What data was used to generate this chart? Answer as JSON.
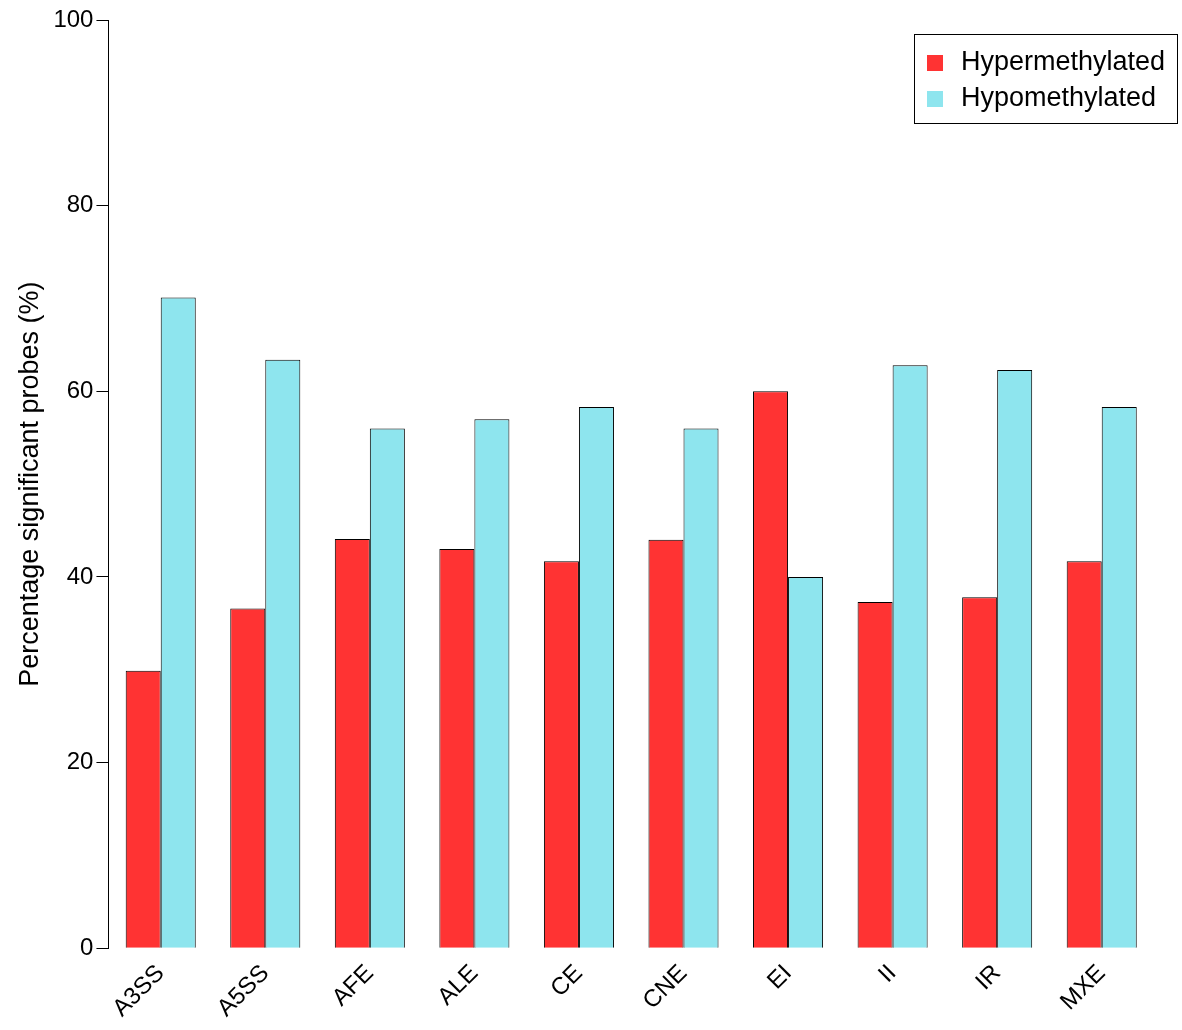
{
  "chart_data": {
    "type": "bar",
    "ylabel": "Percentage significant probes (%)",
    "categories": [
      "A3SS",
      "A5SS",
      "AFE",
      "ALE",
      "CE",
      "CNE",
      "EI",
      "II",
      "IR",
      "MXE"
    ],
    "series": [
      {
        "name": "Hypermethylated",
        "color": "#ff3333",
        "values": [
          29.9,
          36.6,
          44.1,
          43.0,
          41.7,
          44.0,
          60.0,
          37.3,
          37.8,
          41.7
        ]
      },
      {
        "name": "Hypomethylated",
        "color": "#8ee5ee",
        "values": [
          70.1,
          63.4,
          56.0,
          57.0,
          58.3,
          56.0,
          40.0,
          62.8,
          62.3,
          58.3
        ]
      }
    ],
    "ylim": [
      0,
      100
    ],
    "yticks": [
      0,
      20,
      40,
      60,
      80,
      100
    ],
    "grid": false,
    "legend": "top right"
  }
}
